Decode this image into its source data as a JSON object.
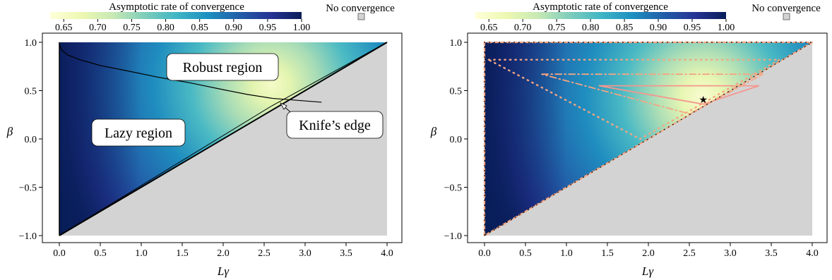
{
  "figure": {
    "colorbar_title": "Asymptotic rate of convergence",
    "colorbar_ticks": [
      "0.65",
      "0.70",
      "0.75",
      "0.80",
      "0.85",
      "0.90",
      "0.95",
      "1.00"
    ],
    "colorbar_range": [
      0.63,
      1.0
    ],
    "colormap": [
      "#ffffd9",
      "#edf8b1",
      "#c7e9b4",
      "#7fcdbb",
      "#41b6c4",
      "#1d91c0",
      "#225ea8",
      "#253494",
      "#081d58"
    ],
    "no_convergence_label": "No convergence",
    "no_convergence_color": "#d3d3d3",
    "xlabel": "Lγ",
    "ylabel": "β",
    "x_ticks": [
      "0.0",
      "0.5",
      "1.0",
      "1.5",
      "2.0",
      "2.5",
      "3.0",
      "3.5",
      "4.0"
    ],
    "y_ticks": [
      "1.0",
      "0.5",
      "0.0",
      "−0.5",
      "−1.0"
    ]
  },
  "chart_data": [
    {
      "type": "heatmap",
      "xlabel": "Lγ",
      "ylabel": "β",
      "xlim": [
        -0.1,
        4.1
      ],
      "ylim": [
        -1.08,
        1.06
      ],
      "convergence_region": {
        "vertices": [
          [
            0,
            -1
          ],
          [
            0,
            1
          ],
          [
            4,
            1
          ]
        ]
      },
      "optimum": {
        "x": 2.67,
        "y": 0.41
      },
      "labels": {
        "robust": "Robust region",
        "lazy": "Lazy region",
        "knife": "Knife’s edge"
      },
      "robust_boundary": [
        [
          0.0,
          0.98
        ],
        [
          0.03,
          0.92
        ],
        [
          0.1,
          0.87
        ],
        [
          0.25,
          0.82
        ],
        [
          0.5,
          0.76
        ],
        [
          0.8,
          0.71
        ],
        [
          1.2,
          0.64
        ],
        [
          1.6,
          0.58
        ],
        [
          2.0,
          0.51
        ],
        [
          2.3,
          0.46
        ],
        [
          2.6,
          0.42
        ],
        [
          2.9,
          0.4
        ],
        [
          3.2,
          0.38
        ]
      ],
      "knife_edge_line": [
        [
          0.0,
          -1.0
        ],
        [
          2.6,
          0.35
        ],
        [
          4.0,
          1.0
        ]
      ]
    },
    {
      "type": "heatmap",
      "xlabel": "Lγ",
      "ylabel": "β",
      "xlim": [
        -0.1,
        4.1
      ],
      "ylim": [
        -1.08,
        1.06
      ],
      "convergence_region": {
        "vertices": [
          [
            0,
            -1
          ],
          [
            0,
            1
          ],
          [
            4,
            1
          ]
        ]
      },
      "optimum": {
        "x": 2.67,
        "y": 0.41
      },
      "level_sets": [
        {
          "style": "solid",
          "points": [
            [
              1.4,
              0.55
            ],
            [
              3.35,
              0.55
            ],
            [
              2.67,
              0.36
            ],
            [
              1.4,
              0.55
            ]
          ]
        },
        {
          "style": "dashdot",
          "points": [
            [
              0.7,
              0.67
            ],
            [
              3.4,
              0.67
            ],
            [
              2.5,
              0.26
            ],
            [
              0.7,
              0.67
            ]
          ]
        },
        {
          "style": "dotted-large",
          "points": [
            [
              0.05,
              0.82
            ],
            [
              3.6,
              0.82
            ],
            [
              1.9,
              0.0
            ],
            [
              0.05,
              0.82
            ]
          ]
        },
        {
          "style": "dashed-boundary",
          "points": [
            [
              0,
              -1
            ],
            [
              0,
              1
            ],
            [
              4,
              1
            ],
            [
              0,
              -1
            ]
          ]
        }
      ]
    }
  ]
}
